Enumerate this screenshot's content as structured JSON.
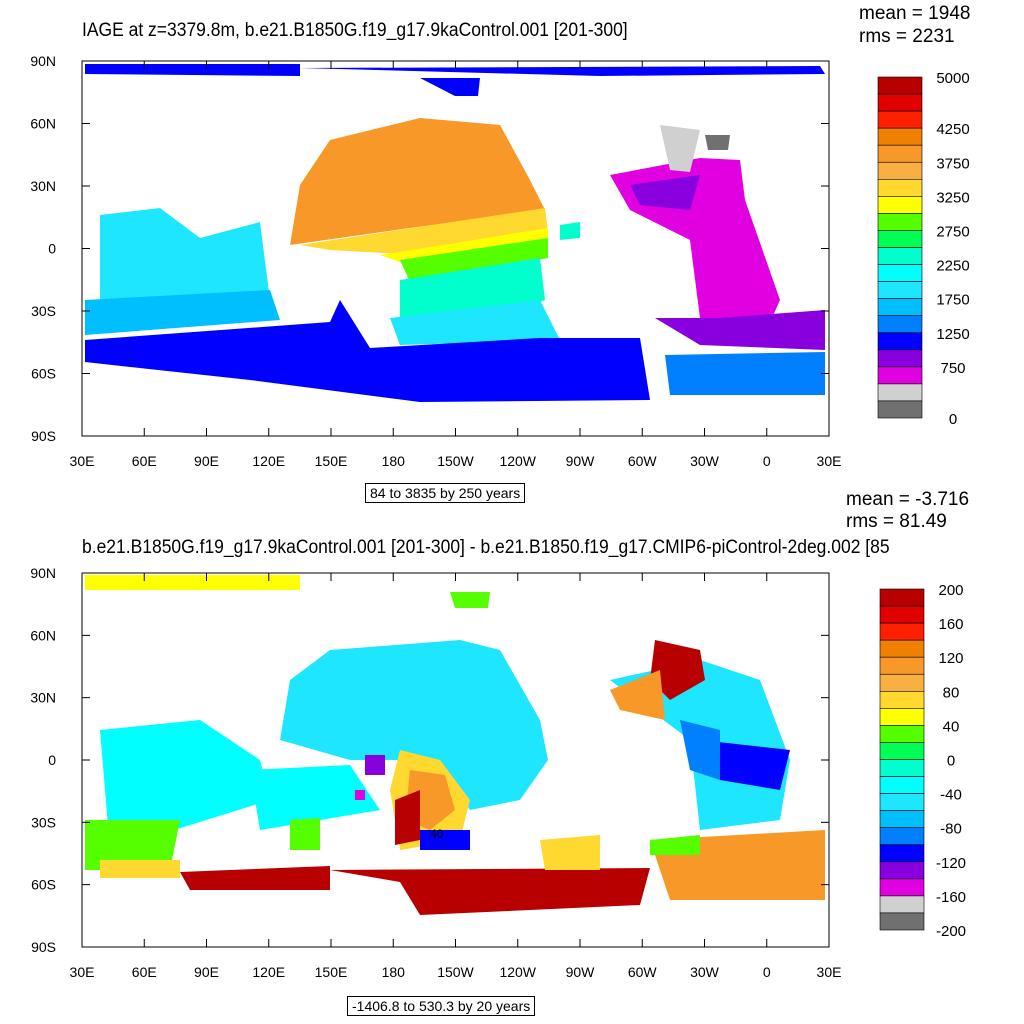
{
  "panels": [
    {
      "title": "IAGE at z=3379.8m, b.e21.B1850G.f19_g17.9kaControl.001 [201-300]",
      "mean": "mean = 1948",
      "rms": "rms = 2231",
      "info": "84 to 3835 by 250 years",
      "colorbar_labels": [
        "5000",
        "4250",
        "3750",
        "3250",
        "2750",
        "2250",
        "1750",
        "1250",
        "750",
        "0"
      ]
    },
    {
      "title": "b.e21.B1850G.f19_g17.9kaControl.001 [201-300] - b.e21.B1850.f19_g17.CMIP6-piControl-2deg.002 [85",
      "mean": "mean = -3.716",
      "rms": "rms = 81.49",
      "info": "-1406.8 to 530.3 by 20 years",
      "contour_label": "40",
      "colorbar_labels": [
        "200",
        "160",
        "120",
        "80",
        "40",
        "0",
        "-40",
        "-80",
        "-120",
        "-160",
        "-200"
      ]
    }
  ],
  "lon_ticks": [
    "30E",
    "60E",
    "90E",
    "120E",
    "150E",
    "180",
    "150W",
    "120W",
    "90W",
    "60W",
    "30W",
    "0",
    "30E"
  ],
  "lat_ticks": [
    "90N",
    "60N",
    "30N",
    "0",
    "30S",
    "60S",
    "90S"
  ],
  "chart_data": {
    "type": "heatmap",
    "colors": [
      "#b80000",
      "#e00000",
      "#ff2000",
      "#f08000",
      "#f89828",
      "#f8b040",
      "#ffd830",
      "#ffff00",
      "#55ff00",
      "#00ff55",
      "#00ffcc",
      "#00ffff",
      "#1ee6ff",
      "#00bfff",
      "#0080ff",
      "#0000ff",
      "#8800dd",
      "#e000e0",
      "#d0d0d0",
      "#707070"
    ],
    "panel1_levels": {
      "min": 0,
      "max": 5000,
      "unit": "years"
    },
    "panel2_levels": {
      "min": -200,
      "max": 200,
      "step": 20,
      "unit": "years"
    }
  }
}
